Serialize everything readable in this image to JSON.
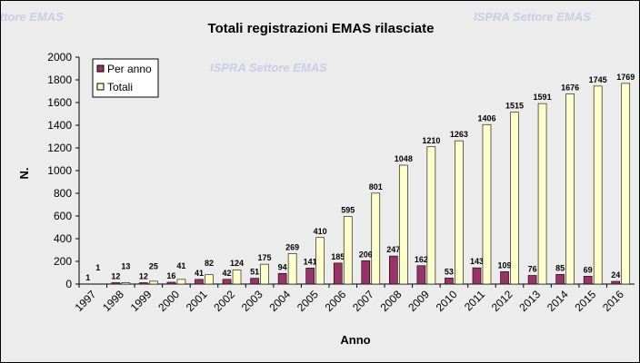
{
  "chart_data": {
    "type": "bar",
    "title": "Totali registrazioni EMAS rilasciate",
    "xlabel": "Anno",
    "ylabel": "N.",
    "ylim": [
      0,
      2000
    ],
    "yticks": [
      0,
      200,
      400,
      600,
      800,
      1000,
      1200,
      1400,
      1600,
      1800,
      2000
    ],
    "categories": [
      "1997",
      "1998",
      "1999",
      "2000",
      "2001",
      "2002",
      "2003",
      "2004",
      "2005",
      "2006",
      "2007",
      "2008",
      "2009",
      "2010",
      "2011",
      "2012",
      "2013",
      "2014",
      "2015",
      "2016"
    ],
    "series": [
      {
        "name": "Per anno",
        "color": "#993366",
        "values": [
          1,
          12,
          12,
          16,
          41,
          42,
          51,
          94,
          141,
          185,
          206,
          247,
          162,
          53,
          143,
          109,
          76,
          85,
          69,
          24
        ]
      },
      {
        "name": "Totali",
        "color": "#ffffcc",
        "values": [
          1,
          13,
          25,
          41,
          82,
          124,
          175,
          269,
          410,
          595,
          801,
          1048,
          1210,
          1263,
          1406,
          1515,
          1591,
          1676,
          1745,
          1769
        ]
      }
    ],
    "legend": "top-left",
    "watermark": "ISPRA Settore EMAS"
  }
}
